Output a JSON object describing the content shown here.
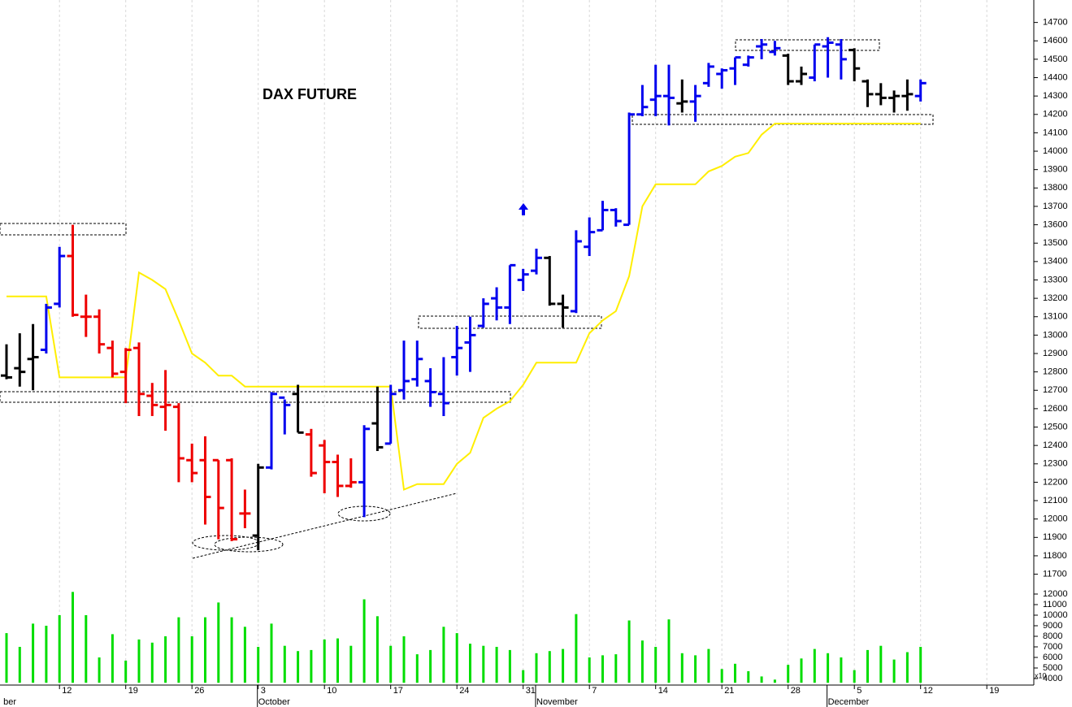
{
  "chart_data": {
    "type": "ohlc",
    "title": "DAX FUTURE",
    "categories": [
      null,
      null,
      null,
      null,
      "12",
      null,
      null,
      null,
      null,
      "19",
      null,
      null,
      null,
      null,
      "26",
      null,
      null,
      null,
      null,
      "3",
      null,
      null,
      null,
      null,
      "10",
      null,
      null,
      null,
      null,
      "17",
      null,
      null,
      null,
      null,
      "24",
      null,
      null,
      null,
      null,
      "31",
      null,
      null,
      null,
      null,
      "7",
      null,
      null,
      null,
      null,
      "14",
      null,
      null,
      null,
      null,
      "21",
      null,
      null,
      null,
      null,
      "28",
      null,
      null,
      null,
      null,
      "5",
      null,
      null,
      null,
      null,
      "12",
      null,
      null,
      null,
      null,
      "19"
    ],
    "month_labels": [
      "ber",
      null,
      null,
      null,
      null,
      null,
      null,
      null,
      null,
      null,
      null,
      null,
      null,
      null,
      null,
      null,
      null,
      null,
      null,
      "October",
      null,
      null,
      null,
      null,
      null,
      null,
      null,
      null,
      null,
      null,
      null,
      null,
      null,
      null,
      null,
      null,
      null,
      null,
      null,
      null,
      "November",
      null,
      null,
      null,
      null,
      null,
      null,
      null,
      null,
      null,
      null,
      null,
      null,
      null,
      null,
      null,
      null,
      null,
      null,
      null,
      null,
      null,
      "December",
      null,
      null,
      null,
      null,
      null,
      null,
      null,
      null,
      null,
      null,
      null,
      null
    ],
    "open": [
      12780,
      12820,
      12870,
      12920,
      13170,
      13430,
      13100,
      13100,
      12930,
      12800,
      12930,
      12670,
      12610,
      12610,
      12320,
      12320,
      12320,
      12320,
      12030,
      11910,
      12280,
      12660,
      12680,
      12460,
      12400,
      12310,
      12180,
      12200,
      12520,
      12410,
      12700,
      12760,
      12750,
      12680,
      12880,
      12960,
      13050,
      13200,
      13150,
      13300,
      13350,
      13420,
      13170,
      13130,
      13480,
      13570,
      13680,
      13600,
      14200,
      14280,
      14300,
      14260,
      14270,
      14370,
      14420,
      14450,
      14470,
      14570,
      14540,
      14520,
      14380,
      14400,
      14570,
      14580,
      14550,
      14380,
      14310,
      14290,
      14300,
      14300,
      null,
      null,
      null,
      null,
      null
    ],
    "high": [
      12950,
      13010,
      13060,
      13170,
      13480,
      13600,
      13220,
      13140,
      12970,
      12930,
      12960,
      12740,
      12810,
      12630,
      12410,
      12450,
      12320,
      12330,
      12160,
      12300,
      12690,
      12650,
      12730,
      12490,
      12430,
      12350,
      12330,
      12510,
      12720,
      12730,
      12970,
      12970,
      12820,
      12880,
      13050,
      13100,
      13200,
      13260,
      13380,
      13360,
      13470,
      13430,
      13220,
      13570,
      13640,
      13730,
      13690,
      14210,
      14360,
      14470,
      14470,
      14390,
      14360,
      14480,
      14450,
      14510,
      14520,
      14610,
      14600,
      14530,
      14460,
      14580,
      14620,
      14610,
      14560,
      14390,
      14370,
      14330,
      14390,
      14390,
      null,
      null,
      null,
      null,
      null
    ],
    "low": [
      12760,
      12720,
      12700,
      12900,
      13150,
      13100,
      12990,
      12900,
      12770,
      12630,
      12560,
      12560,
      12480,
      12200,
      12200,
      11970,
      11890,
      11880,
      11950,
      11830,
      12270,
      12460,
      12470,
      12230,
      12140,
      12120,
      12170,
      12010,
      12370,
      12410,
      12650,
      12720,
      12610,
      12560,
      12780,
      12800,
      13040,
      13080,
      13060,
      13240,
      13330,
      13160,
      13040,
      13120,
      13430,
      13570,
      13590,
      13600,
      14190,
      14190,
      14140,
      14210,
      14160,
      14350,
      14340,
      14360,
      14460,
      14500,
      14520,
      14360,
      14360,
      14380,
      14400,
      14390,
      14380,
      14240,
      14250,
      14210,
      14220,
      14270,
      null,
      null,
      null,
      null,
      null
    ],
    "close": [
      12770,
      12800,
      12880,
      13150,
      13430,
      13110,
      13100,
      12950,
      12790,
      12920,
      12680,
      12620,
      12620,
      12330,
      12250,
      12120,
      12060,
      11890,
      12030,
      12280,
      12680,
      12620,
      12470,
      12250,
      12310,
      12180,
      12200,
      12490,
      12390,
      12680,
      12750,
      12870,
      12690,
      12630,
      12930,
      13000,
      13170,
      13150,
      13380,
      13330,
      13420,
      13170,
      13150,
      13510,
      13560,
      13680,
      13620,
      14200,
      14240,
      14300,
      14290,
      14270,
      14300,
      14460,
      14440,
      14510,
      14510,
      14580,
      14560,
      14380,
      14420,
      14580,
      14590,
      14500,
      14450,
      14310,
      14290,
      14300,
      14310,
      14370,
      null,
      null,
      null,
      null,
      null
    ],
    "bar_colors": [
      "#000000",
      "#000000",
      "#000000",
      "#0000ee",
      "#0000ee",
      "#ee0000",
      "#ee0000",
      "#ee0000",
      "#ee0000",
      "#ee0000",
      "#ee0000",
      "#ee0000",
      "#ee0000",
      "#ee0000",
      "#ee0000",
      "#ee0000",
      "#ee0000",
      "#ee0000",
      "#ee0000",
      "#000000",
      "#0000ee",
      "#0000ee",
      "#000000",
      "#ee0000",
      "#ee0000",
      "#ee0000",
      "#ee0000",
      "#0000ee",
      "#000000",
      "#0000ee",
      "#0000ee",
      "#0000ee",
      "#0000ee",
      "#0000ee",
      "#0000ee",
      "#0000ee",
      "#0000ee",
      "#0000ee",
      "#0000ee",
      "#0000ee",
      "#0000ee",
      "#000000",
      "#000000",
      "#0000ee",
      "#0000ee",
      "#0000ee",
      "#0000ee",
      "#0000ee",
      "#0000ee",
      "#0000ee",
      "#0000ee",
      "#000000",
      "#0000ee",
      "#0000ee",
      "#0000ee",
      "#0000ee",
      "#0000ee",
      "#0000ee",
      "#0000ee",
      "#000000",
      "#000000",
      "#0000ee",
      "#0000ee",
      "#0000ee",
      "#000000",
      "#000000",
      "#000000",
      "#000000",
      "#000000",
      "#0000ee",
      null,
      null,
      null,
      null,
      null
    ],
    "stop_line": {
      "color": "#ffee00",
      "values": [
        13210,
        13210,
        13210,
        13210,
        12770,
        12770,
        12770,
        12770,
        12770,
        12770,
        13340,
        13300,
        13250,
        13080,
        12900,
        12850,
        12780,
        12780,
        12720,
        12720,
        12720,
        12720,
        12720,
        12720,
        12720,
        12720,
        12720,
        12720,
        12720,
        12720,
        12160,
        12190,
        12190,
        12190,
        12300,
        12360,
        12550,
        12600,
        12640,
        12730,
        12850,
        12850,
        12850,
        12850,
        13010,
        13080,
        13130,
        13320,
        13700,
        13820,
        13820,
        13820,
        13820,
        13890,
        13920,
        13970,
        13990,
        14090,
        14150,
        14150,
        14150,
        14150,
        14150,
        14150,
        14150,
        14150,
        14150,
        14150,
        14150,
        14150,
        null,
        null,
        null,
        null,
        null
      ]
    },
    "ylim": [
      11600,
      14800
    ],
    "yticks": [
      11700,
      11800,
      11900,
      12000,
      12100,
      12200,
      12300,
      12400,
      12500,
      12600,
      12700,
      12800,
      12900,
      13000,
      13100,
      13200,
      13300,
      13400,
      13500,
      13600,
      13700,
      13800,
      13900,
      14000,
      14100,
      14200,
      14300,
      14400,
      14500,
      14600,
      14700
    ],
    "grid": true,
    "volume": {
      "color": "#00dd00",
      "values": [
        8300,
        7000,
        9200,
        9000,
        10000,
        12200,
        10000,
        6000,
        8200,
        5700,
        7700,
        7400,
        8000,
        9800,
        8000,
        9800,
        11200,
        9800,
        8900,
        7000,
        9200,
        7100,
        6600,
        6700,
        7700,
        7800,
        7100,
        11500,
        9900,
        7100,
        8000,
        6300,
        6700,
        8900,
        8300,
        7300,
        7100,
        7000,
        6700,
        4800,
        6400,
        6600,
        6800,
        10100,
        6000,
        6200,
        6300,
        9500,
        7600,
        7000,
        9600,
        6400,
        6200,
        6800,
        4900,
        5400,
        4700,
        4200,
        3900,
        5300,
        5900,
        6800,
        6400,
        6000,
        4800,
        6700,
        7100,
        5800,
        6500,
        7000,
        null,
        null,
        null,
        null,
        null
      ],
      "ylim": [
        3600,
        12600
      ],
      "yticks": [
        4000,
        5000,
        6000,
        7000,
        8000,
        9000,
        10000,
        11000,
        12000
      ],
      "axis_note": "x10"
    }
  }
}
